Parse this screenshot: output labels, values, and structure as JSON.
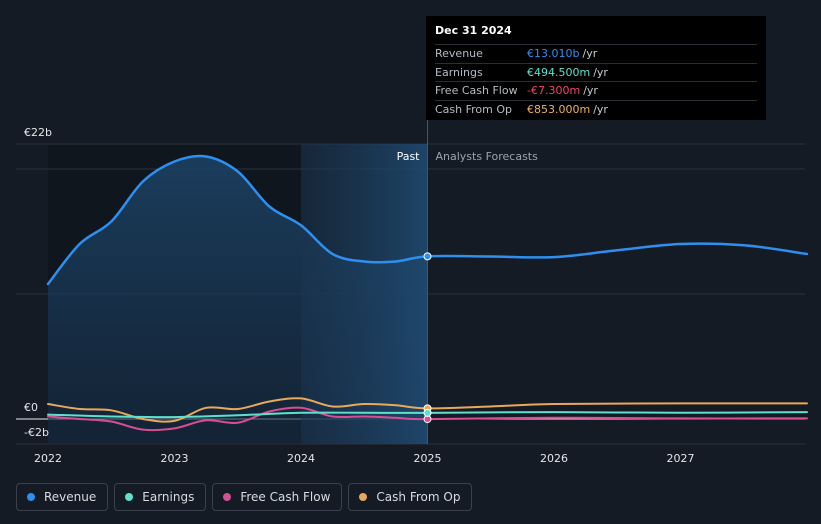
{
  "tooltip": {
    "date": "Dec 31 2024",
    "rows": [
      {
        "label": "Revenue",
        "value": "€13.010b",
        "unit": "/yr",
        "color": "#2f8ff0"
      },
      {
        "label": "Earnings",
        "value": "€494.500m",
        "unit": "/yr",
        "color": "#5ee0cc"
      },
      {
        "label": "Free Cash Flow",
        "value": "-€7.300m",
        "unit": "/yr",
        "color": "#ef4466"
      },
      {
        "label": "Cash From Op",
        "value": "€853.000m",
        "unit": "/yr",
        "color": "#f0b060"
      }
    ]
  },
  "legend": [
    {
      "label": "Revenue",
      "color": "#2f8ff0"
    },
    {
      "label": "Earnings",
      "color": "#5ee0cc"
    },
    {
      "label": "Free Cash Flow",
      "color": "#d64f93"
    },
    {
      "label": "Cash From Op",
      "color": "#e8a95c"
    }
  ],
  "chart_data": {
    "type": "line",
    "y_tick_labels": [
      "€22b",
      "€0",
      "-€2b"
    ],
    "ylim": [
      -2,
      22
    ],
    "x_ticks": [
      "2022",
      "2023",
      "2024",
      "2025",
      "2026",
      "2027"
    ],
    "xlim": [
      2022.0,
      2028.0
    ],
    "past_label": "Past",
    "forecast_label": "Analysts Forecasts",
    "divider_x": 2025.0,
    "highlight_start": 2024.0,
    "series": [
      {
        "name": "Revenue",
        "color": "#2f8ff0",
        "points": [
          [
            2022.0,
            10.8
          ],
          [
            2022.25,
            14.0
          ],
          [
            2022.5,
            15.8
          ],
          [
            2022.75,
            19.0
          ],
          [
            2023.0,
            20.6
          ],
          [
            2023.25,
            21.0
          ],
          [
            2023.5,
            19.8
          ],
          [
            2023.75,
            17.0
          ],
          [
            2024.0,
            15.5
          ],
          [
            2024.25,
            13.2
          ],
          [
            2024.5,
            12.6
          ],
          [
            2024.75,
            12.6
          ],
          [
            2025.0,
            13.01
          ],
          [
            2025.5,
            13.0
          ],
          [
            2026.0,
            12.95
          ],
          [
            2026.5,
            13.5
          ],
          [
            2027.0,
            14.0
          ],
          [
            2027.5,
            13.9
          ],
          [
            2028.0,
            13.2
          ]
        ]
      },
      {
        "name": "Earnings",
        "color": "#5ee0cc",
        "points": [
          [
            2022.0,
            0.35
          ],
          [
            2022.5,
            0.2
          ],
          [
            2023.0,
            0.15
          ],
          [
            2023.5,
            0.3
          ],
          [
            2024.0,
            0.5
          ],
          [
            2024.5,
            0.5
          ],
          [
            2025.0,
            0.49
          ],
          [
            2026.0,
            0.55
          ],
          [
            2027.0,
            0.5
          ],
          [
            2028.0,
            0.55
          ]
        ]
      },
      {
        "name": "Free Cash Flow",
        "color": "#d64f93",
        "points": [
          [
            2022.0,
            0.2
          ],
          [
            2022.25,
            0.0
          ],
          [
            2022.5,
            -0.2
          ],
          [
            2022.75,
            -0.85
          ],
          [
            2023.0,
            -0.75
          ],
          [
            2023.25,
            -0.1
          ],
          [
            2023.5,
            -0.3
          ],
          [
            2023.75,
            0.6
          ],
          [
            2024.0,
            0.9
          ],
          [
            2024.25,
            0.2
          ],
          [
            2024.5,
            0.2
          ],
          [
            2024.75,
            0.1
          ],
          [
            2025.0,
            -0.007
          ],
          [
            2026.0,
            0.1
          ],
          [
            2027.0,
            0.05
          ],
          [
            2028.0,
            0.05
          ]
        ]
      },
      {
        "name": "Cash From Op",
        "color": "#e8a95c",
        "points": [
          [
            2022.0,
            1.2
          ],
          [
            2022.25,
            0.8
          ],
          [
            2022.5,
            0.7
          ],
          [
            2022.75,
            0.0
          ],
          [
            2023.0,
            -0.15
          ],
          [
            2023.25,
            0.9
          ],
          [
            2023.5,
            0.8
          ],
          [
            2023.75,
            1.4
          ],
          [
            2024.0,
            1.65
          ],
          [
            2024.25,
            1.0
          ],
          [
            2024.5,
            1.2
          ],
          [
            2024.75,
            1.1
          ],
          [
            2025.0,
            0.85
          ],
          [
            2025.5,
            1.0
          ],
          [
            2026.0,
            1.2
          ],
          [
            2027.0,
            1.25
          ],
          [
            2028.0,
            1.25
          ]
        ]
      }
    ]
  }
}
